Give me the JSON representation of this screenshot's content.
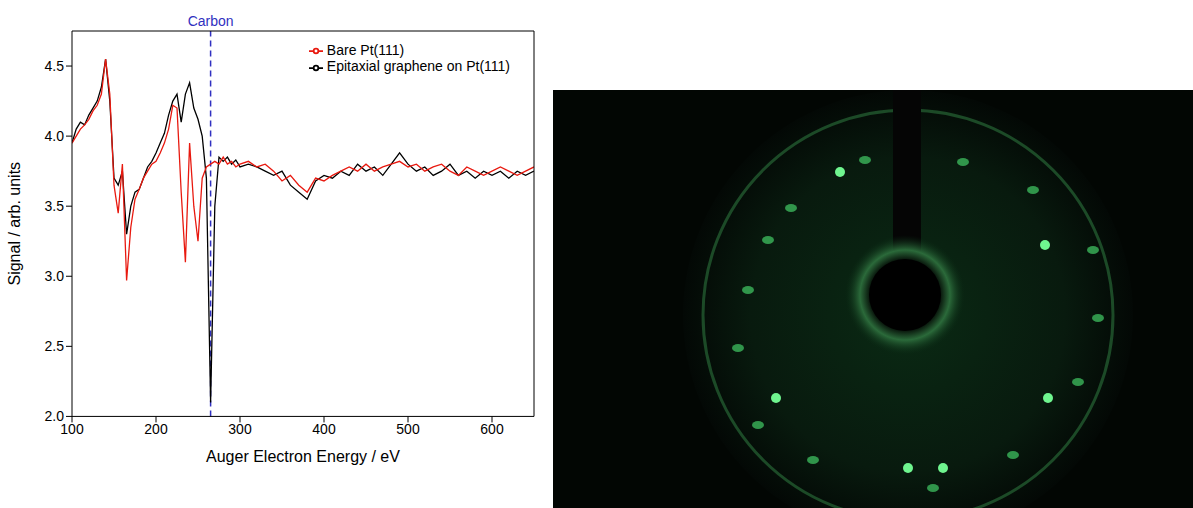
{
  "chart_data": {
    "type": "line",
    "x_label": "Auger Electron Energy / eV",
    "y_label": "Signal / arb. units",
    "x": [
      100,
      105,
      110,
      115,
      120,
      125,
      130,
      135,
      140,
      145,
      150,
      155,
      160,
      165,
      170,
      175,
      180,
      185,
      190,
      195,
      200,
      205,
      210,
      215,
      220,
      225,
      230,
      235,
      240,
      245,
      250,
      255,
      260,
      265,
      270,
      275,
      280,
      285,
      290,
      295,
      300,
      310,
      320,
      330,
      340,
      350,
      360,
      370,
      380,
      390,
      400,
      410,
      420,
      430,
      440,
      450,
      460,
      470,
      480,
      490,
      500,
      510,
      520,
      530,
      540,
      550,
      560,
      570,
      580,
      590,
      600,
      610,
      620,
      630,
      640,
      650
    ],
    "series": [
      {
        "name": "Epitaxial graphene on Pt(111)",
        "color": "#000000",
        "values": [
          3.95,
          4.05,
          4.1,
          4.08,
          4.15,
          4.2,
          4.25,
          4.35,
          4.55,
          4.25,
          3.7,
          3.65,
          3.75,
          3.3,
          3.5,
          3.6,
          3.62,
          3.7,
          3.78,
          3.82,
          3.88,
          3.95,
          4.02,
          4.15,
          4.25,
          4.3,
          4.1,
          4.3,
          4.38,
          4.2,
          4.12,
          4.0,
          3.7,
          2.1,
          3.5,
          3.85,
          3.82,
          3.85,
          3.8,
          3.83,
          3.78,
          3.8,
          3.78,
          3.75,
          3.72,
          3.75,
          3.65,
          3.6,
          3.55,
          3.68,
          3.72,
          3.7,
          3.75,
          3.72,
          3.8,
          3.75,
          3.78,
          3.72,
          3.8,
          3.88,
          3.8,
          3.75,
          3.78,
          3.72,
          3.75,
          3.8,
          3.72,
          3.75,
          3.7,
          3.75,
          3.72,
          3.75,
          3.7,
          3.75,
          3.72,
          3.75
        ]
      },
      {
        "name": "Bare Pt(111)",
        "color": "#e8190f",
        "values": [
          3.95,
          4.0,
          4.05,
          4.08,
          4.12,
          4.18,
          4.22,
          4.3,
          4.55,
          4.3,
          3.65,
          3.45,
          3.8,
          2.97,
          3.35,
          3.55,
          3.62,
          3.7,
          3.75,
          3.8,
          3.82,
          3.88,
          3.95,
          4.05,
          4.22,
          4.2,
          3.6,
          3.1,
          3.95,
          3.5,
          3.25,
          3.7,
          3.78,
          3.8,
          3.82,
          3.8,
          3.85,
          3.8,
          3.82,
          3.78,
          3.8,
          3.82,
          3.78,
          3.8,
          3.75,
          3.68,
          3.72,
          3.65,
          3.6,
          3.7,
          3.68,
          3.72,
          3.75,
          3.78,
          3.75,
          3.8,
          3.75,
          3.78,
          3.8,
          3.82,
          3.78,
          3.8,
          3.75,
          3.78,
          3.8,
          3.75,
          3.72,
          3.78,
          3.75,
          3.72,
          3.75,
          3.78,
          3.75,
          3.72,
          3.75,
          3.78
        ]
      }
    ],
    "xlim": [
      100,
      650
    ],
    "xticks": [
      100,
      200,
      300,
      400,
      500,
      600
    ],
    "ylim": [
      2.0,
      4.75
    ],
    "yticks": [
      {
        "value": 2.0,
        "label": "2.0"
      },
      2.5,
      {
        "value": 3.0,
        "label": "3.0"
      },
      3.5,
      {
        "value": 4.0,
        "label": "4.0"
      },
      4.5
    ],
    "annotations": [
      {
        "text": "Carbon",
        "x": 265,
        "color": "#3030c0",
        "line_style": "dashed"
      }
    ],
    "legend": "upper right",
    "grid": false
  }
}
